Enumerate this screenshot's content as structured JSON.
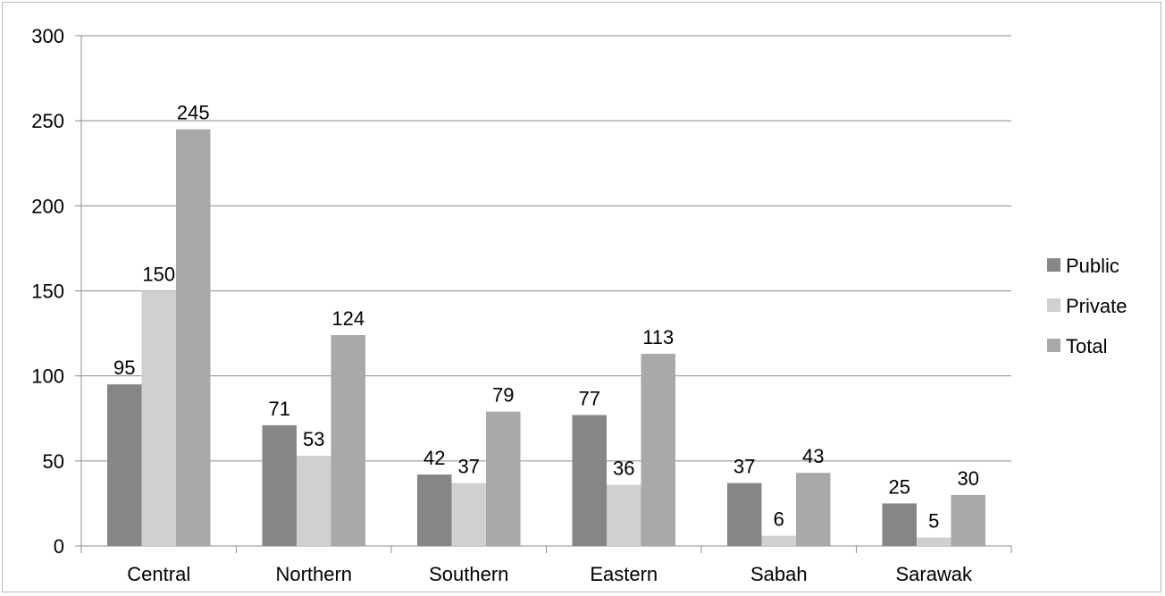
{
  "chart_data": {
    "type": "bar",
    "title": "",
    "xlabel": "",
    "ylabel": "",
    "categories": [
      "Central",
      "Northern",
      "Southern",
      "Eastern",
      "Sabah",
      "Sarawak"
    ],
    "series": [
      {
        "name": "Public",
        "color": "#868686",
        "values": [
          95,
          71,
          42,
          77,
          37,
          25
        ]
      },
      {
        "name": "Private",
        "color": "#d0d0d0",
        "values": [
          150,
          53,
          37,
          36,
          6,
          5
        ]
      },
      {
        "name": "Total",
        "color": "#a9a9a9",
        "values": [
          245,
          124,
          79,
          113,
          43,
          30
        ]
      }
    ],
    "ylim": [
      0,
      300
    ],
    "yticks": [
      0,
      50,
      100,
      150,
      200,
      250,
      300
    ],
    "grid": true,
    "legend_position": "right",
    "data_labels": true
  }
}
